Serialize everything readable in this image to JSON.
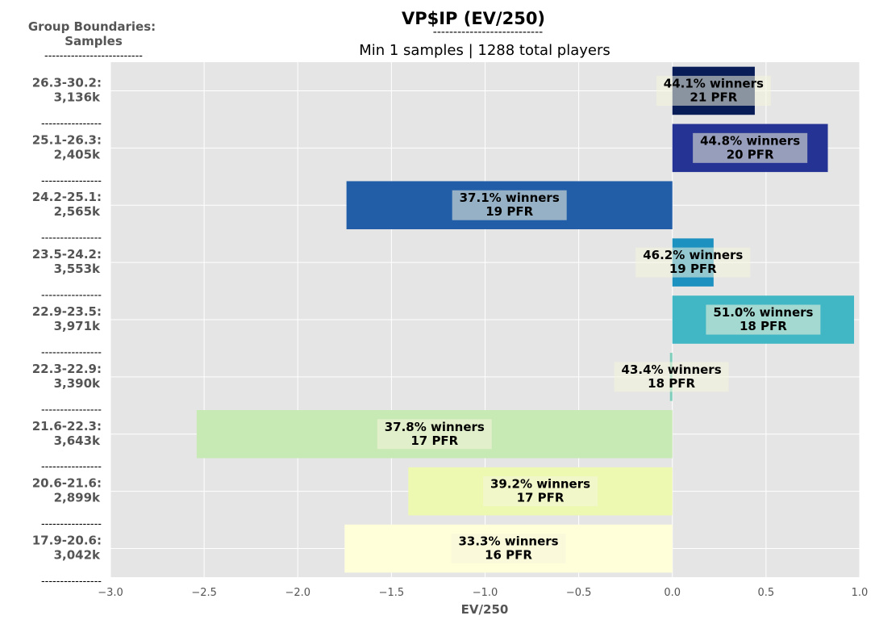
{
  "chart_data": {
    "type": "bar",
    "orientation": "horizontal",
    "title": "VP$IP (EV/250)",
    "title_underline": "---------------------------",
    "subtitle": "Min 1 samples | 1288 total players",
    "xlabel": "EV/250",
    "ylabel_header": "Group Boundaries:",
    "ylabel_header_2": "Samples",
    "ylabel_header_underline": "--------------------------",
    "separator": "----------------",
    "xlim": [
      -3.0,
      1.0
    ],
    "x_ticks": [
      "−3.0",
      "−2.5",
      "−2.0",
      "−1.5",
      "−1.0",
      "−0.5",
      "0.0",
      "0.5",
      "1.0"
    ],
    "x_tick_values": [
      -3.0,
      -2.5,
      -2.0,
      -1.5,
      -1.0,
      -0.5,
      0.0,
      0.5,
      1.0
    ],
    "grid": true,
    "bars": [
      {
        "range": "26.3-30.2:",
        "samples": "3,136k",
        "value": 0.44,
        "label1": "44.1% winners",
        "label2": "21 PFR",
        "color": "#081d58"
      },
      {
        "range": "25.1-26.3:",
        "samples": "2,405k",
        "value": 0.83,
        "label1": "44.8% winners",
        "label2": "20 PFR",
        "color": "#253494"
      },
      {
        "range": "24.2-25.1:",
        "samples": "2,565k",
        "value": -1.74,
        "label1": "37.1% winners",
        "label2": "19 PFR",
        "color": "#225ea8"
      },
      {
        "range": "23.5-24.2:",
        "samples": "3,553k",
        "value": 0.22,
        "label1": "46.2% winners",
        "label2": "19 PFR",
        "color": "#1d91c0"
      },
      {
        "range": "22.9-23.5:",
        "samples": "3,971k",
        "value": 0.97,
        "label1": "51.0% winners",
        "label2": "18 PFR",
        "color": "#41b6c4"
      },
      {
        "range": "22.3-22.9:",
        "samples": "3,390k",
        "value": -0.01,
        "label1": "43.4% winners",
        "label2": "18 PFR",
        "color": "#7fcdbb"
      },
      {
        "range": "21.6-22.3:",
        "samples": "3,643k",
        "value": -2.54,
        "label1": "37.8% winners",
        "label2": "17 PFR",
        "color": "#c7e9b4"
      },
      {
        "range": "20.6-21.6:",
        "samples": "2,899k",
        "value": -1.41,
        "label1": "39.2% winners",
        "label2": "17 PFR",
        "color": "#edf8b1"
      },
      {
        "range": "17.9-20.6:",
        "samples": "3,042k",
        "value": -1.75,
        "label1": "33.3% winners",
        "label2": "16 PFR",
        "color": "#ffffd9"
      }
    ]
  }
}
